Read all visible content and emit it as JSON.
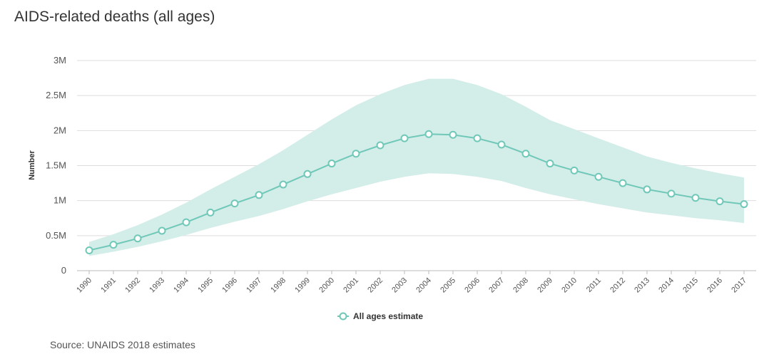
{
  "chart_data": {
    "type": "line",
    "title": "AIDS-related deaths (all ages)",
    "ylabel": "Number",
    "xlabel": "",
    "source": "Source: UNAIDS 2018 estimates",
    "ylim": [
      0,
      3000000
    ],
    "y_ticks": [
      {
        "value": 0,
        "label": "0"
      },
      {
        "value": 500000,
        "label": "0.5M"
      },
      {
        "value": 1000000,
        "label": "1M"
      },
      {
        "value": 1500000,
        "label": "1.5M"
      },
      {
        "value": 2000000,
        "label": "2M"
      },
      {
        "value": 2500000,
        "label": "2.5M"
      },
      {
        "value": 3000000,
        "label": "3M"
      }
    ],
    "grid": true,
    "legend_position": "bottom-center",
    "categories": [
      "1990",
      "1991",
      "1992",
      "1993",
      "1994",
      "1995",
      "1996",
      "1997",
      "1998",
      "1999",
      "2000",
      "2001",
      "2002",
      "2003",
      "2004",
      "2005",
      "2006",
      "2007",
      "2008",
      "2009",
      "2010",
      "2011",
      "2012",
      "2013",
      "2014",
      "2015",
      "2016",
      "2017"
    ],
    "series": [
      {
        "name": "All ages estimate",
        "color": "#6fc8b8",
        "values": [
          290000,
          370000,
          460000,
          570000,
          690000,
          830000,
          960000,
          1080000,
          1230000,
          1380000,
          1530000,
          1670000,
          1790000,
          1890000,
          1950000,
          1940000,
          1890000,
          1800000,
          1670000,
          1530000,
          1430000,
          1340000,
          1250000,
          1160000,
          1100000,
          1040000,
          990000,
          950000
        ],
        "lower": [
          210000,
          270000,
          340000,
          420000,
          510000,
          610000,
          700000,
          780000,
          880000,
          990000,
          1090000,
          1180000,
          1270000,
          1340000,
          1390000,
          1380000,
          1340000,
          1280000,
          1180000,
          1090000,
          1020000,
          950000,
          890000,
          830000,
          790000,
          750000,
          720000,
          680000
        ],
        "upper": [
          410000,
          520000,
          650000,
          800000,
          970000,
          1160000,
          1340000,
          1520000,
          1720000,
          1940000,
          2160000,
          2360000,
          2520000,
          2650000,
          2740000,
          2740000,
          2650000,
          2520000,
          2340000,
          2150000,
          2020000,
          1890000,
          1760000,
          1630000,
          1540000,
          1460000,
          1390000,
          1330000
        ],
        "band_color": "#d3ede8"
      }
    ]
  }
}
